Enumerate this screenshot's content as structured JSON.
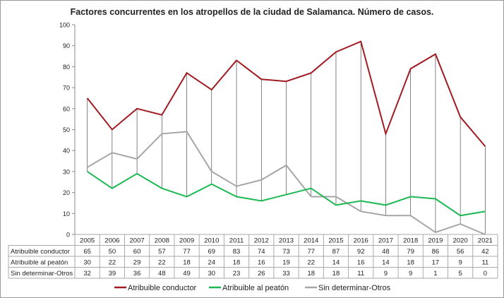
{
  "chart_data": {
    "type": "line",
    "title": "Factores concurrentes en los atropellos de la ciudad de Salamanca.  Número de casos.",
    "categories": [
      "2005",
      "2006",
      "2007",
      "2008",
      "2009",
      "2010",
      "2011",
      "2012",
      "2013",
      "2014",
      "2015",
      "2016",
      "2017",
      "2018",
      "2019",
      "2020",
      "2021"
    ],
    "ylim": [
      0,
      100
    ],
    "yticks": [
      0,
      10,
      20,
      30,
      40,
      50,
      60,
      70,
      80,
      90,
      100
    ],
    "grid": false,
    "high_low_lines": true,
    "legend_placement": "bottom",
    "data_table": true,
    "series": [
      {
        "name": "Atribuible conductor",
        "color": "#a01c22",
        "values": [
          65,
          50,
          60,
          57,
          77,
          69,
          83,
          74,
          73,
          77,
          87,
          92,
          48,
          79,
          86,
          56,
          42
        ]
      },
      {
        "name": "Atribuible al peatón",
        "color": "#1db954",
        "values": [
          30,
          22,
          29,
          22,
          18,
          24,
          18,
          16,
          19,
          22,
          14,
          16,
          14,
          18,
          17,
          9,
          11
        ]
      },
      {
        "name": "Sin determinar-Otros",
        "color": "#a6a6a6",
        "values": [
          32,
          39,
          36,
          48,
          49,
          30,
          23,
          26,
          33,
          18,
          18,
          11,
          9,
          9,
          1,
          5,
          0
        ]
      }
    ]
  }
}
